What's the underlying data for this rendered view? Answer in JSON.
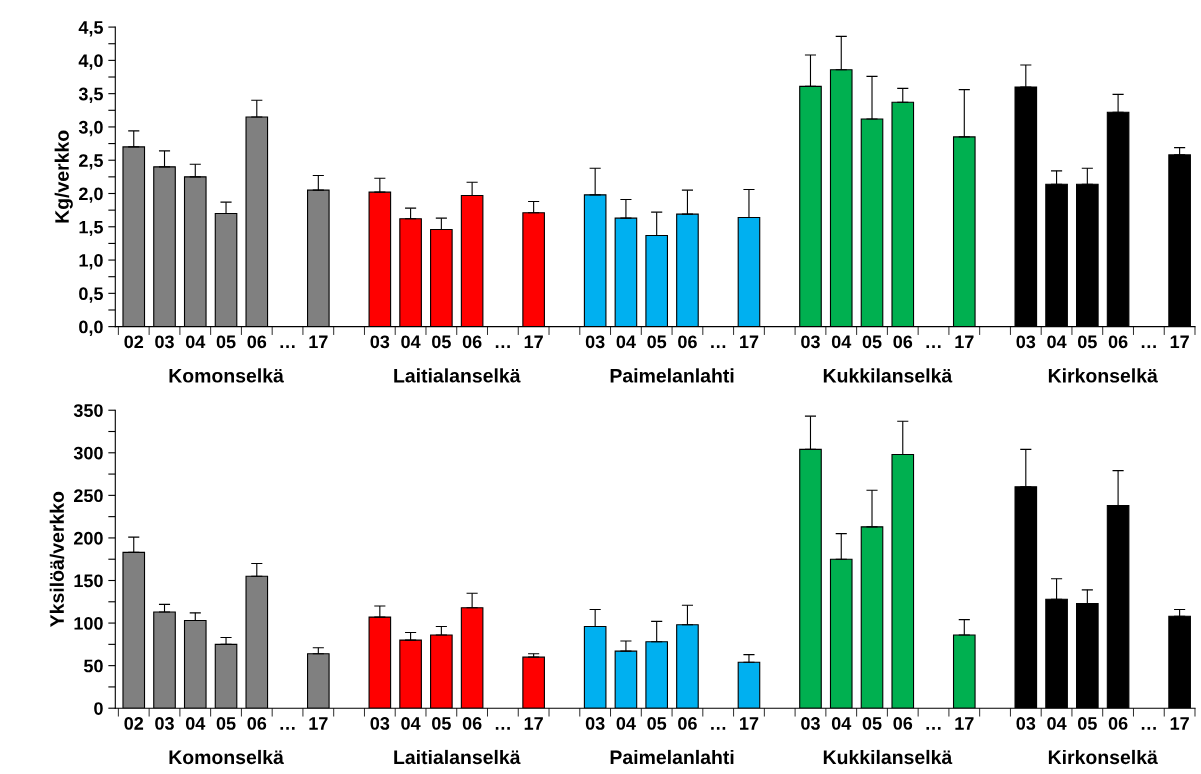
{
  "chart_data": [
    {
      "type": "bar",
      "ylabel": "Kg/verkko",
      "categories": [
        "02",
        "03",
        "04",
        "05",
        "06",
        "…",
        "17",
        null,
        "03",
        "04",
        "05",
        "06",
        "…",
        "17",
        null,
        "03",
        "04",
        "05",
        "06",
        "…",
        "17",
        null,
        "03",
        "04",
        "05",
        "06",
        "…",
        "17",
        null,
        "03",
        "04",
        "05",
        "06",
        "…",
        "17"
      ],
      "values": [
        2.7,
        2.4,
        2.25,
        1.7,
        3.15,
        null,
        2.05,
        null,
        2.02,
        1.62,
        1.46,
        1.97,
        null,
        1.71,
        null,
        1.98,
        1.63,
        1.37,
        1.69,
        null,
        1.64,
        null,
        3.61,
        3.86,
        3.12,
        3.37,
        null,
        2.85,
        null,
        3.6,
        2.14,
        2.14,
        3.22,
        null,
        2.58
      ],
      "errors": [
        [
          2.7,
          2.94
        ],
        [
          2.4,
          2.64
        ],
        [
          2.25,
          2.44
        ],
        [
          1.7,
          1.87
        ],
        [
          3.15,
          3.4
        ],
        null,
        [
          2.05,
          2.27
        ],
        null,
        [
          2.02,
          2.23
        ],
        [
          1.62,
          1.78
        ],
        [
          1.46,
          1.63
        ],
        [
          1.97,
          2.17
        ],
        null,
        [
          1.71,
          1.88
        ],
        null,
        [
          1.98,
          2.38
        ],
        [
          1.63,
          1.91
        ],
        [
          1.37,
          1.72
        ],
        [
          1.69,
          2.05
        ],
        null,
        [
          1.64,
          2.06
        ],
        null,
        [
          3.61,
          4.08
        ],
        [
          3.86,
          4.36
        ],
        [
          3.12,
          3.76
        ],
        [
          3.37,
          3.58
        ],
        null,
        [
          2.85,
          3.56
        ],
        null,
        [
          3.6,
          3.93
        ],
        [
          2.14,
          2.34
        ],
        [
          2.14,
          2.38
        ],
        [
          3.22,
          3.49
        ],
        null,
        [
          2.58,
          2.69
        ]
      ],
      "colors": [
        "#808080",
        "#808080",
        "#808080",
        "#808080",
        "#808080",
        null,
        "#808080",
        null,
        "#ff0000",
        "#ff0000",
        "#ff0000",
        "#ff0000",
        null,
        "#ff0000",
        null,
        "#00b0f0",
        "#00b0f0",
        "#00b0f0",
        "#00b0f0",
        null,
        "#00b0f0",
        null,
        "#00b050",
        "#00b050",
        "#00b050",
        "#00b050",
        null,
        "#00b050",
        null,
        "#000000",
        "#000000",
        "#000000",
        "#000000",
        null,
        "#000000"
      ],
      "annotations": [
        "Komonselkä",
        "Laitialanselkä",
        "Paimelanlahti",
        "Kukkilanselkä",
        "Kirkonselkä"
      ],
      "ylim": [
        0,
        4.5
      ],
      "yticks": [
        {
          "value": 0,
          "label": "0,0"
        },
        {
          "value": 0.25,
          "label": null
        },
        {
          "value": 0.5,
          "label": "0,5"
        },
        {
          "value": 0.75,
          "label": null
        },
        {
          "value": 1,
          "label": "1,0"
        },
        {
          "value": 1.25,
          "label": null
        },
        {
          "value": 1.5,
          "label": "1,5"
        },
        {
          "value": 1.75,
          "label": null
        },
        {
          "value": 2,
          "label": "2,0"
        },
        {
          "value": 2.25,
          "label": null
        },
        {
          "value": 2.5,
          "label": "2,5"
        },
        {
          "value": 2.75,
          "label": null
        },
        {
          "value": 3,
          "label": "3,0"
        },
        {
          "value": 3.25,
          "label": null
        },
        {
          "value": 3.5,
          "label": "3,5"
        },
        {
          "value": 3.75,
          "label": null
        },
        {
          "value": 4,
          "label": "4,0"
        },
        {
          "value": 4.25,
          "label": null
        },
        {
          "value": 4.5,
          "label": "4,5"
        }
      ],
      "grid": false,
      "legend": false
    },
    {
      "type": "bar",
      "ylabel": "Yksilöä/verkko",
      "categories": [
        "02",
        "03",
        "04",
        "05",
        "06",
        "…",
        "17",
        null,
        "03",
        "04",
        "05",
        "06",
        "…",
        "17",
        null,
        "03",
        "04",
        "05",
        "06",
        "…",
        "17",
        null,
        "03",
        "04",
        "05",
        "06",
        "…",
        "17",
        null,
        "03",
        "04",
        "05",
        "06",
        "…",
        "17"
      ],
      "values": [
        183,
        113,
        103,
        75,
        155,
        null,
        64,
        null,
        107,
        80,
        86,
        118,
        null,
        60,
        null,
        96,
        67,
        78,
        98,
        null,
        54,
        null,
        304,
        175,
        213,
        298,
        null,
        86,
        null,
        260,
        128,
        123,
        238,
        null,
        108
      ],
      "errors": [
        [
          183,
          201
        ],
        [
          113,
          122
        ],
        [
          103,
          112
        ],
        [
          75,
          83
        ],
        [
          155,
          170
        ],
        null,
        [
          64,
          71
        ],
        null,
        [
          107,
          120
        ],
        [
          80,
          89
        ],
        [
          86,
          96
        ],
        [
          118,
          135
        ],
        null,
        [
          60,
          64
        ],
        null,
        [
          96,
          116
        ],
        [
          67,
          79
        ],
        [
          78,
          102
        ],
        [
          98,
          121
        ],
        null,
        [
          54,
          63
        ],
        null,
        [
          304,
          343
        ],
        [
          175,
          205
        ],
        [
          213,
          256
        ],
        [
          298,
          337
        ],
        null,
        [
          86,
          104
        ],
        null,
        [
          260,
          304
        ],
        [
          128,
          152
        ],
        [
          123,
          139
        ],
        [
          238,
          279
        ],
        null,
        [
          108,
          116
        ]
      ],
      "colors": [
        "#808080",
        "#808080",
        "#808080",
        "#808080",
        "#808080",
        null,
        "#808080",
        null,
        "#ff0000",
        "#ff0000",
        "#ff0000",
        "#ff0000",
        null,
        "#ff0000",
        null,
        "#00b0f0",
        "#00b0f0",
        "#00b0f0",
        "#00b0f0",
        null,
        "#00b0f0",
        null,
        "#00b050",
        "#00b050",
        "#00b050",
        "#00b050",
        null,
        "#00b050",
        null,
        "#000000",
        "#000000",
        "#000000",
        "#000000",
        null,
        "#000000"
      ],
      "annotations": [
        "Komonselkä",
        "Laitialanselkä",
        "Paimelanlahti",
        "Kukkilanselkä",
        "Kirkonselkä"
      ],
      "ylim": [
        0,
        350
      ],
      "yticks": [
        0,
        {
          "value": 25,
          "label": null
        },
        50,
        {
          "value": 75,
          "label": null
        },
        100,
        {
          "value": 125,
          "label": null
        },
        150,
        {
          "value": 175,
          "label": null
        },
        200,
        {
          "value": 225,
          "label": null
        },
        250,
        {
          "value": 275,
          "label": null
        },
        300,
        {
          "value": 325,
          "label": null
        },
        350
      ],
      "grid": false,
      "legend": false
    }
  ]
}
